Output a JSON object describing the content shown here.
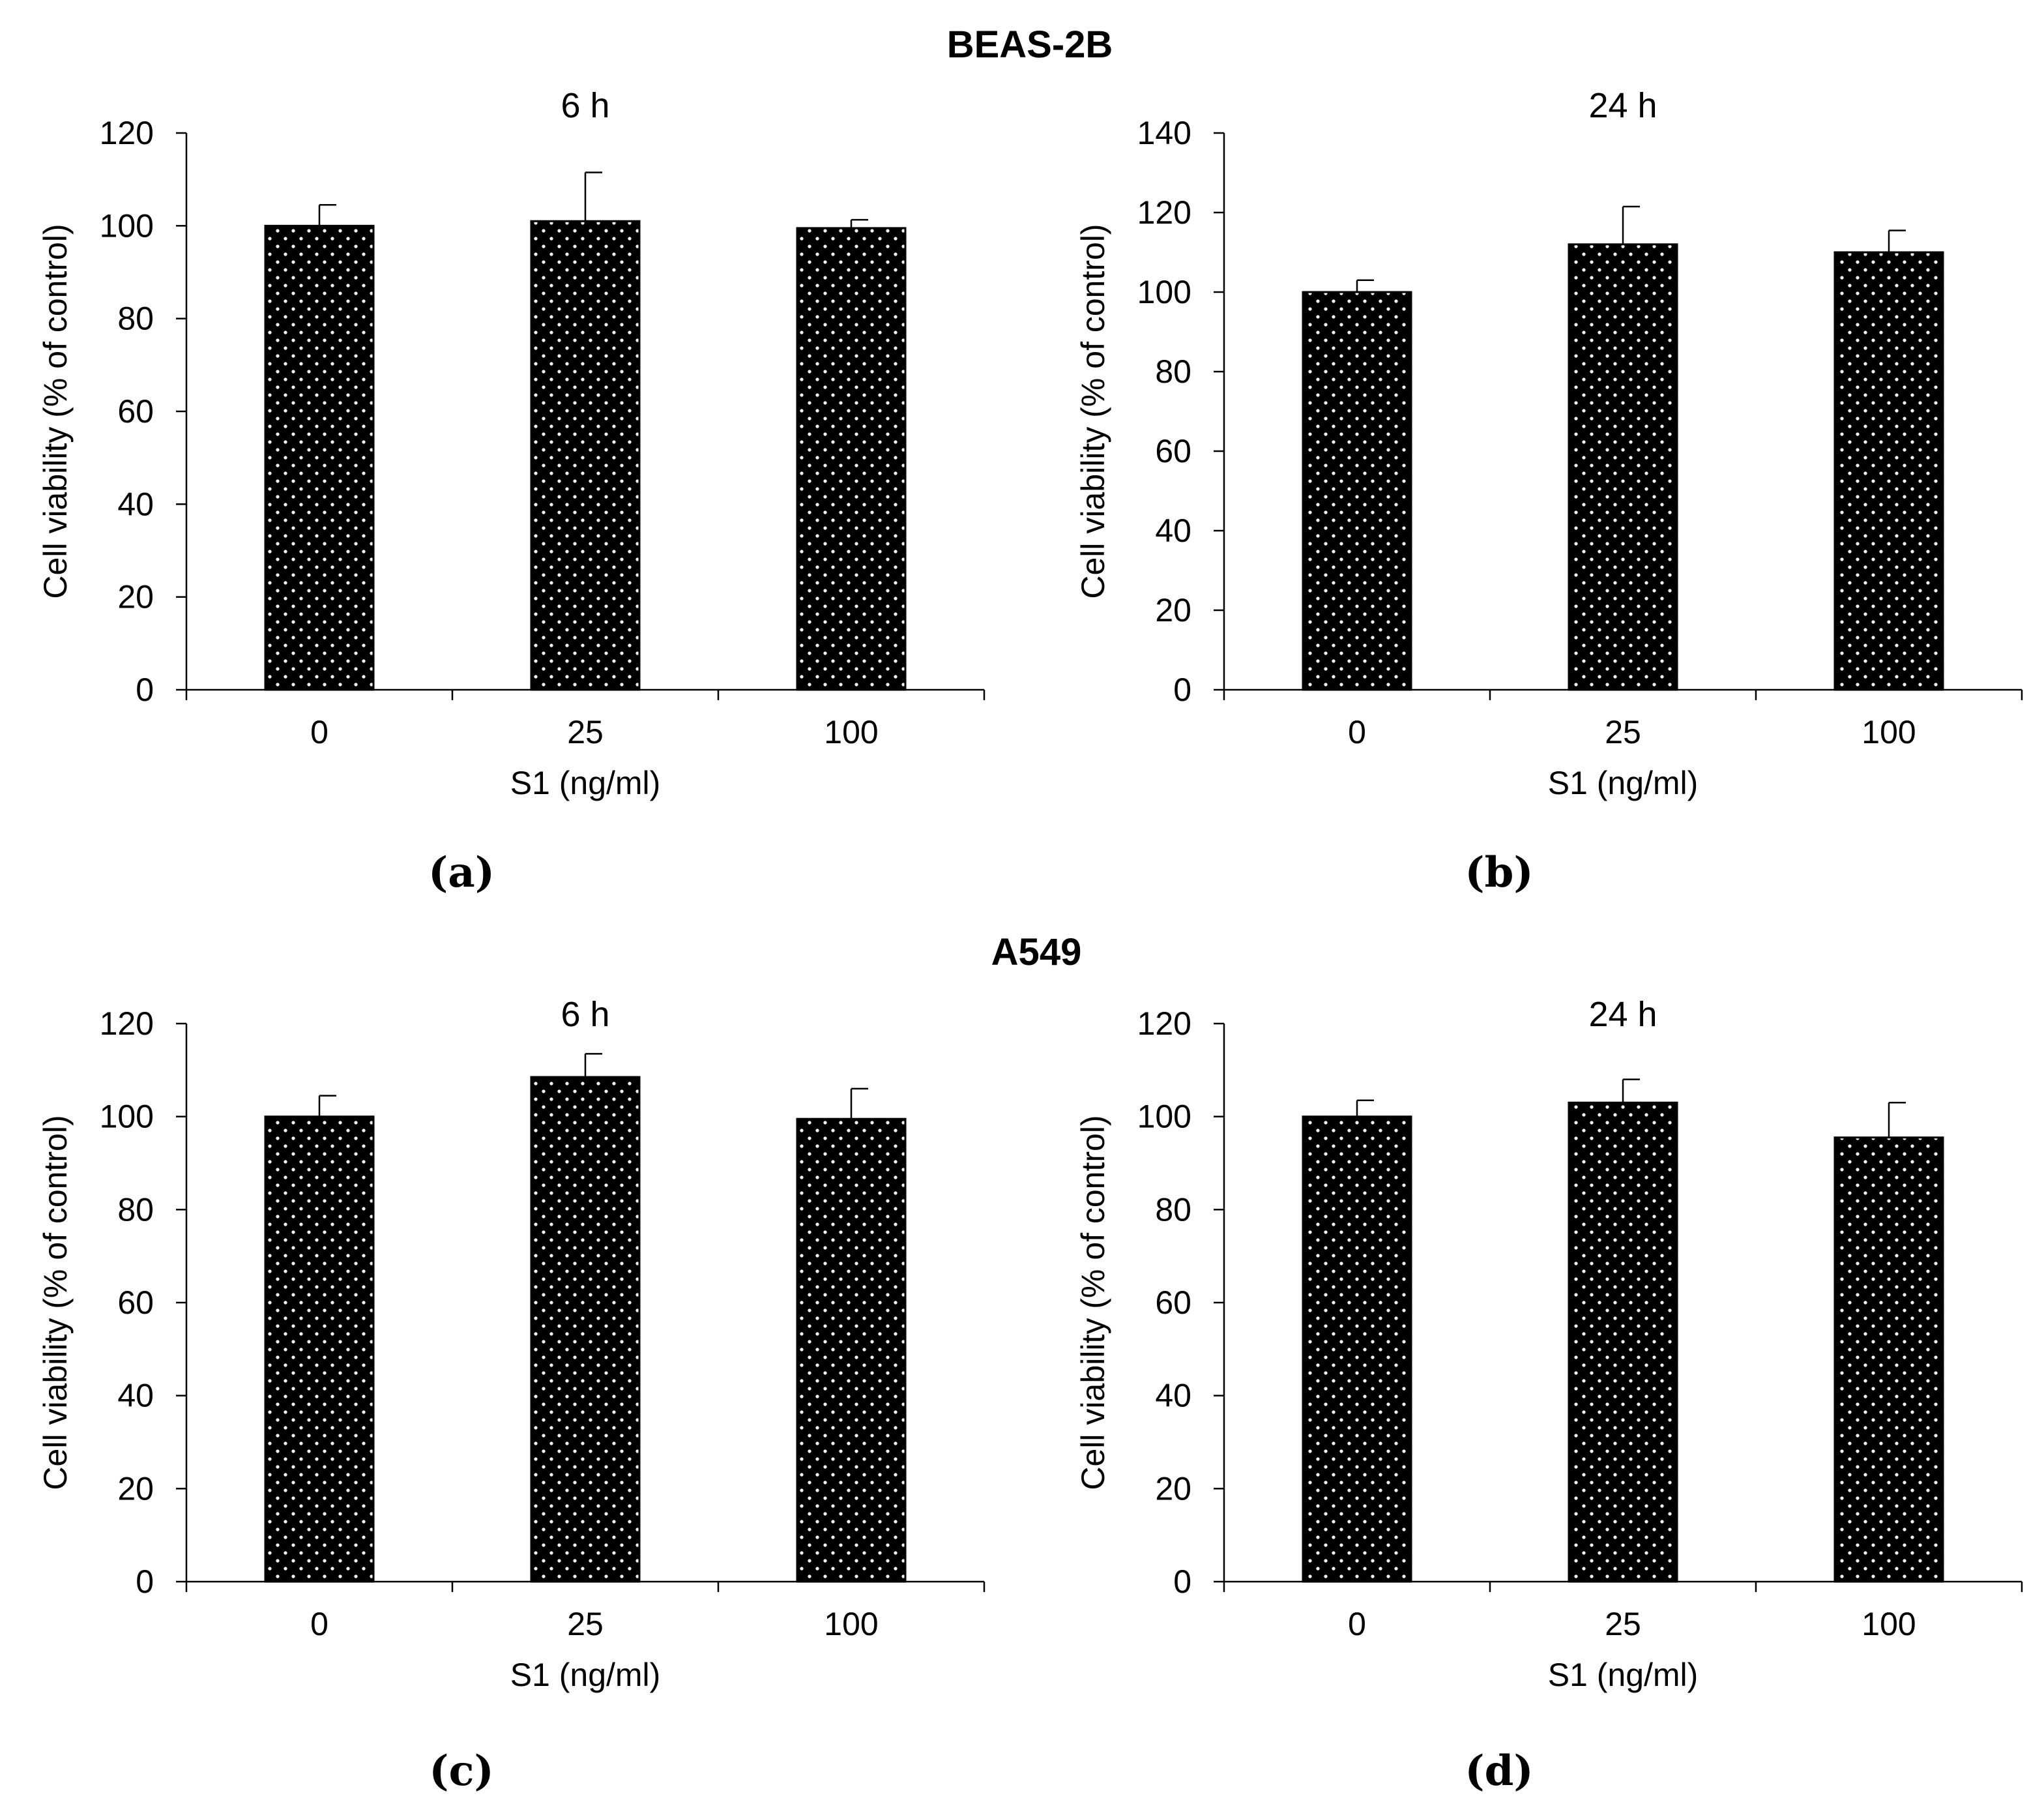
{
  "group_titles": [
    "BEAS-2B",
    "A549"
  ],
  "chart_data": [
    {
      "type": "bar",
      "group": "BEAS-2B",
      "panel": "(a)",
      "title": "6 h",
      "xlabel": "S1 (ng/ml)",
      "ylabel": "Cell viability (% of control)",
      "categories": [
        "0",
        "25",
        "100"
      ],
      "values": [
        100,
        101,
        99.5
      ],
      "errors": [
        4.5,
        10.5,
        1.8
      ],
      "ylim": [
        0,
        120
      ],
      "yticks": [
        0,
        20,
        40,
        60,
        80,
        100,
        120
      ]
    },
    {
      "type": "bar",
      "group": "BEAS-2B",
      "panel": "(b)",
      "title": "24 h",
      "xlabel": "S1 (ng/ml)",
      "ylabel": "Cell viability (% of control)",
      "categories": [
        "0",
        "25",
        "100"
      ],
      "values": [
        100,
        112,
        110
      ],
      "errors": [
        3,
        9.5,
        5.5
      ],
      "ylim": [
        0,
        140
      ],
      "yticks": [
        0,
        20,
        40,
        60,
        80,
        100,
        120,
        140
      ]
    },
    {
      "type": "bar",
      "group": "A549",
      "panel": "(c)",
      "title": "6 h",
      "xlabel": "S1 (ng/ml)",
      "ylabel": "Cell viability (% of control)",
      "categories": [
        "0",
        "25",
        "100"
      ],
      "values": [
        100,
        108.5,
        99.5
      ],
      "errors": [
        4.5,
        5,
        6.5
      ],
      "ylim": [
        0,
        120
      ],
      "yticks": [
        0,
        20,
        40,
        60,
        80,
        100,
        120
      ]
    },
    {
      "type": "bar",
      "group": "A549",
      "panel": "(d)",
      "title": "24 h",
      "xlabel": "S1 (ng/ml)",
      "ylabel": "Cell viability (% of control)",
      "categories": [
        "0",
        "25",
        "100"
      ],
      "values": [
        100,
        103,
        95.5
      ],
      "errors": [
        3.5,
        5,
        7.5
      ],
      "ylim": [
        0,
        120
      ],
      "yticks": [
        0,
        20,
        40,
        60,
        80,
        100,
        120
      ]
    }
  ],
  "colors": {
    "bar_fill": "#000000",
    "dot": "#ffffff",
    "axis": "#000000"
  }
}
